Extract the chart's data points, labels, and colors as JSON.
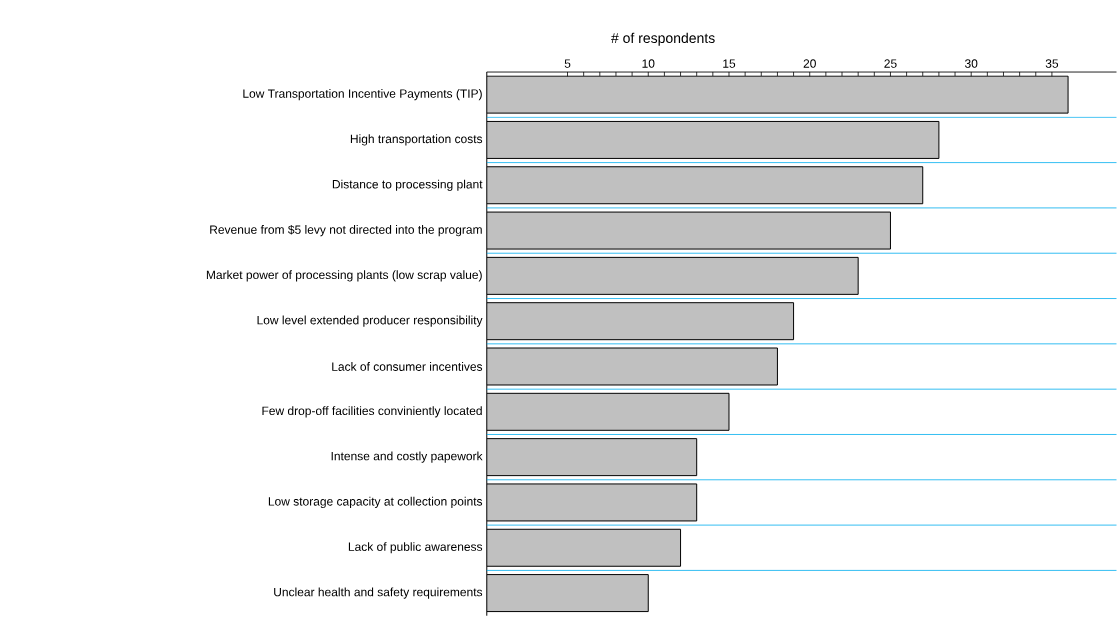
{
  "chart_data": {
    "type": "bar",
    "orientation": "horizontal",
    "xlabel": "# of respondents",
    "categories": [
      "Low Transportation Incentive Payments (TIP)",
      "High transportation costs",
      "Distance to processing plant",
      "Revenue from $5 levy not directed into the program",
      "Market power of processing plants (low scrap value)",
      "Low level extended producer responsibility",
      "Lack of consumer incentives",
      "Few drop-off facilities conviniently located",
      "Intense and costly papework",
      "Low storage capacity at collection points",
      "Lack of public awareness",
      "Unclear health and safety requirements"
    ],
    "values": [
      36,
      28,
      27,
      25,
      23,
      19,
      18,
      15,
      13,
      13,
      12,
      10
    ],
    "color": "#c0c0c0",
    "xlim": [
      0,
      39
    ],
    "xticks": [
      5,
      10,
      15,
      20,
      25,
      30,
      35
    ],
    "grid": "y"
  }
}
